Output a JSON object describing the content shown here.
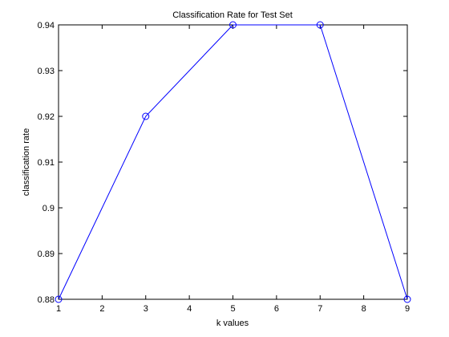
{
  "chart_data": {
    "type": "line",
    "title": "Classification Rate for Test Set",
    "xlabel": "k values",
    "ylabel": "classification rate",
    "xlim": [
      1,
      9
    ],
    "ylim": [
      0.88,
      0.94
    ],
    "x_ticks": [
      1,
      2,
      3,
      4,
      5,
      6,
      7,
      8,
      9
    ],
    "x_tick_labels": [
      "1",
      "2",
      "3",
      "4",
      "5",
      "6",
      "7",
      "8",
      "9"
    ],
    "y_ticks": [
      0.88,
      0.89,
      0.9,
      0.91,
      0.92,
      0.93,
      0.94
    ],
    "y_tick_labels": [
      "0.88",
      "0.89",
      "0.9",
      "0.91",
      "0.92",
      "0.93",
      "0.94"
    ],
    "grid": false,
    "series": [
      {
        "color": "#0000ff",
        "marker": "circle",
        "x": [
          1,
          3,
          5,
          7,
          9
        ],
        "y": [
          0.88,
          0.92,
          0.94,
          0.94,
          0.88
        ]
      }
    ]
  }
}
